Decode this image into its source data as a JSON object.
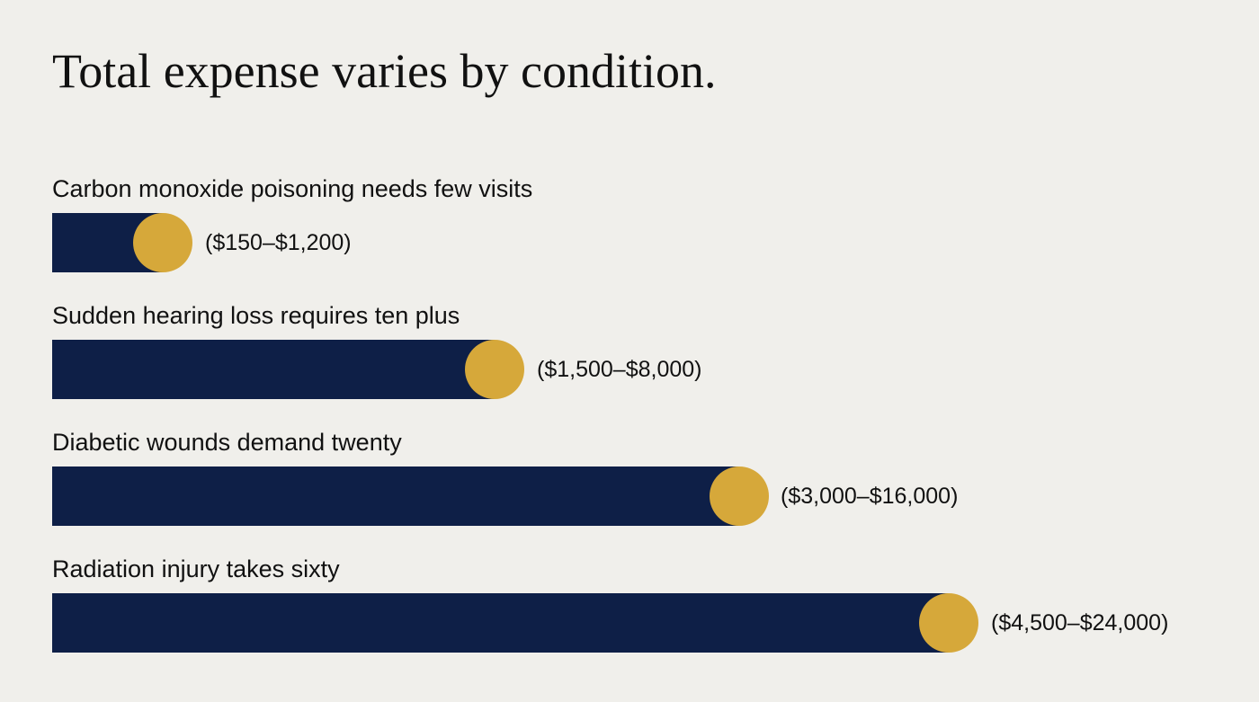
{
  "title": "Total expense varies by condition.",
  "rows": [
    {
      "label": "Carbon monoxide poisoning needs few visits",
      "range": "($150–$1,200)"
    },
    {
      "label": "Sudden hearing loss requires ten plus",
      "range": "($1,500–$8,000)"
    },
    {
      "label": "Diabetic wounds demand twenty",
      "range": "($3,000–$16,000)"
    },
    {
      "label": "Radiation injury takes sixty",
      "range": "($4,500–$24,000)"
    }
  ]
}
